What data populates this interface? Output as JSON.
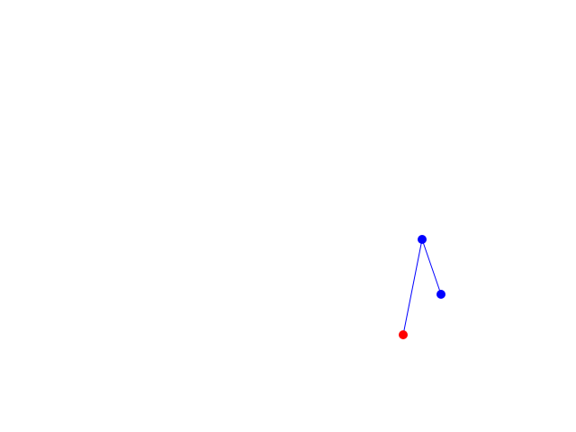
{
  "joints": [
    {
      "color": "#ff0000"
    },
    {
      "color": "#0000ff"
    },
    {
      "color": "#0000ff"
    }
  ],
  "link_color": "#0000ff",
  "background": "#ffffff"
}
